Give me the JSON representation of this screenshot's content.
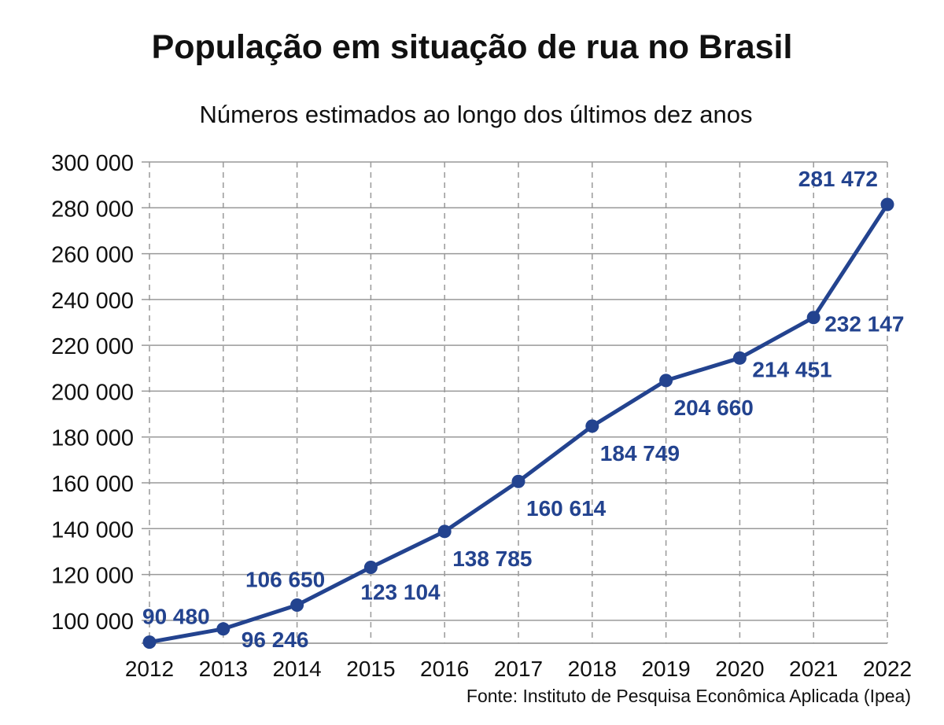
{
  "title": "População em situação de rua no Brasil",
  "subtitle": "Números estimados ao longo dos últimos dez anos",
  "source": "Fonte: Instituto de Pesquisa Econômica Aplicada (Ipea)",
  "colors": {
    "series": "#23438f",
    "grid": "#999999",
    "axis": "#888888"
  },
  "chart_data": {
    "type": "line",
    "title": "População em situação de rua no Brasil",
    "subtitle": "Números estimados ao longo dos últimos dez anos",
    "x": [
      2012,
      2013,
      2014,
      2015,
      2016,
      2017,
      2018,
      2019,
      2020,
      2021,
      2022
    ],
    "series": [
      {
        "values": [
          90480,
          96246,
          106650,
          123104,
          138785,
          160614,
          184749,
          204660,
          214451,
          232147,
          281472
        ],
        "labels": [
          "90 480",
          "96 246",
          "106 650",
          "123 104",
          "138 785",
          "160 614",
          "184 749",
          "204 660",
          "214 451",
          "232 147",
          "281 472"
        ],
        "label_positions": [
          "above",
          "below",
          "above",
          "below",
          "below",
          "below",
          "below",
          "below",
          "below",
          "below",
          "above"
        ]
      }
    ],
    "ylim": [
      90000,
      300000
    ],
    "yticks": [
      100000,
      120000,
      140000,
      160000,
      180000,
      200000,
      220000,
      240000,
      260000,
      280000,
      300000
    ],
    "ytick_labels": [
      "100 000",
      "120 000",
      "140 000",
      "160 000",
      "180 000",
      "200 000",
      "220 000",
      "240 000",
      "260 000",
      "280 000",
      "300 000"
    ],
    "xtick_labels": [
      "2012",
      "2013",
      "2014",
      "2015",
      "2016",
      "2017",
      "2018",
      "2019",
      "2020",
      "2021",
      "2022"
    ],
    "grid": {
      "horizontal": "solid",
      "vertical": "dashed"
    },
    "legend": "none"
  }
}
